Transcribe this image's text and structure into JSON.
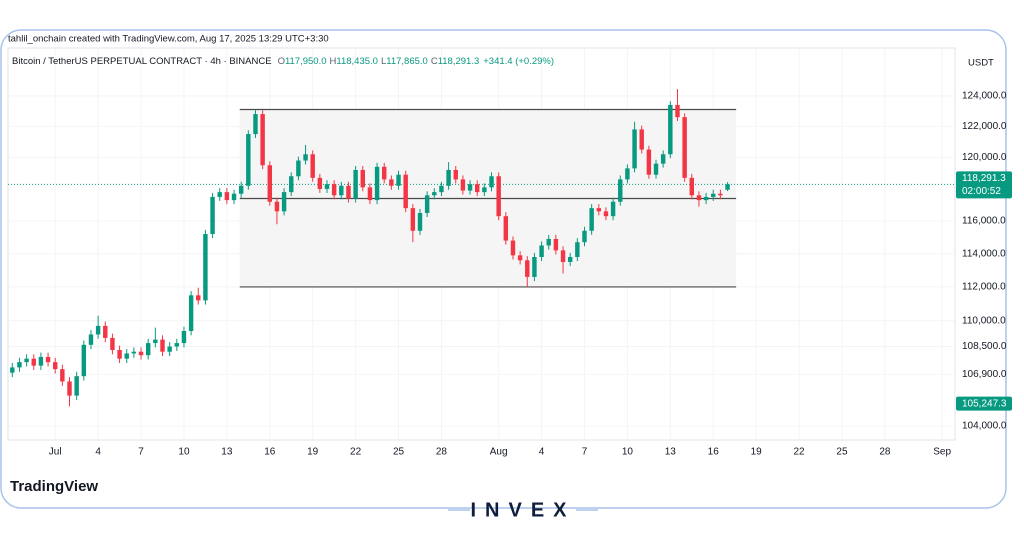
{
  "attribution": "tahlil_onchain created with TradingView.com, Aug 17, 2025 13:29 UTC+3:30",
  "watermark": "TradingView",
  "brand": "INVEX",
  "chart_data": {
    "type": "candlestick",
    "symbol": "Bitcoin / TetherUS PERPETUAL CONTRACT · 4h · BINANCE",
    "ohlc_labels": [
      {
        "key": "O",
        "value": "117,950.0"
      },
      {
        "key": "H",
        "value": "118,435.0"
      },
      {
        "key": "L",
        "value": "117,865.0"
      },
      {
        "key": "C",
        "value": "118,291.3"
      }
    ],
    "change": "+341.4 (+0.29%)",
    "currency": "USDT",
    "up_color": "#089981",
    "down_color": "#f23645",
    "log_scale": true,
    "grid": true,
    "xlim": [
      -3.3,
      62.9
    ],
    "xticks": [
      {
        "value": 0,
        "label": "Jul"
      },
      {
        "value": 3,
        "label": "4"
      },
      {
        "value": 6,
        "label": "7"
      },
      {
        "value": 9,
        "label": "10"
      },
      {
        "value": 12,
        "label": "13"
      },
      {
        "value": 15,
        "label": "16"
      },
      {
        "value": 18,
        "label": "19"
      },
      {
        "value": 21,
        "label": "22"
      },
      {
        "value": 24,
        "label": "25"
      },
      {
        "value": 27,
        "label": "28"
      },
      {
        "value": 31,
        "label": "Aug"
      },
      {
        "value": 34,
        "label": "4"
      },
      {
        "value": 37,
        "label": "7"
      },
      {
        "value": 40,
        "label": "10"
      },
      {
        "value": 43,
        "label": "13"
      },
      {
        "value": 46,
        "label": "16"
      },
      {
        "value": 49,
        "label": "19"
      },
      {
        "value": 52,
        "label": "22"
      },
      {
        "value": 55,
        "label": "25"
      },
      {
        "value": 58,
        "label": "28"
      },
      {
        "value": 62,
        "label": "Sep"
      }
    ],
    "ylim": [
      103230,
      127200
    ],
    "yticks": [
      {
        "value": 124000,
        "label": "124,000.0"
      },
      {
        "value": 122000,
        "label": "122,000.0"
      },
      {
        "value": 120000,
        "label": "120,000.0"
      },
      {
        "value": 116000,
        "label": "116,000.0"
      },
      {
        "value": 114000,
        "label": "114,000.0"
      },
      {
        "value": 112000,
        "label": "112,000.0"
      },
      {
        "value": 110000,
        "label": "110,000.0"
      },
      {
        "value": 108500,
        "label": "108,500.0"
      },
      {
        "value": 106900,
        "label": "106,900.0"
      },
      {
        "value": 104000,
        "label": "104,000.0"
      }
    ],
    "last_price": {
      "value": 118291.3,
      "label": "118,291.3",
      "countdown": "02:00:52",
      "color": "#089981"
    },
    "marker": {
      "value": 105247.3,
      "label": "105,247.3",
      "color": "#089981"
    },
    "range": {
      "x": [
        12.9,
        47.6
      ],
      "levels": [
        123100,
        117400,
        112000
      ],
      "fill": "#f5f5f5",
      "color": "#4a4a4a"
    },
    "x": [
      -3,
      -2.5,
      -2,
      -1.5,
      -1,
      -0.5,
      0,
      0.5,
      1,
      1.5,
      2,
      2.5,
      3,
      3.5,
      4,
      4.5,
      5,
      5.5,
      6,
      6.5,
      7,
      7.5,
      8,
      8.5,
      9,
      9.5,
      10,
      10.5,
      11,
      11.5,
      12,
      12.5,
      13,
      13.5,
      14,
      14.5,
      15,
      15.5,
      16,
      16.5,
      17,
      17.5,
      18,
      18.5,
      19,
      19.5,
      20,
      20.5,
      21,
      21.5,
      22,
      22.5,
      23,
      23.5,
      24,
      24.5,
      25,
      25.5,
      26,
      26.5,
      27,
      27.5,
      28,
      28.5,
      29,
      29.5,
      30,
      30.5,
      31,
      31.5,
      32,
      32.5,
      33,
      33.5,
      34,
      34.5,
      35,
      35.5,
      36,
      36.5,
      37,
      37.5,
      38,
      38.5,
      39,
      39.5,
      40,
      40.5,
      41,
      41.5,
      42,
      42.5,
      43,
      43.5,
      44,
      44.5,
      45,
      45.5,
      46,
      46.5,
      47
    ],
    "open": [
      107000,
      107300,
      107600,
      107800,
      107400,
      107900,
      107600,
      107200,
      106500,
      105700,
      106800,
      108600,
      109200,
      109700,
      109000,
      108300,
      107800,
      108100,
      108200,
      108000,
      108700,
      108900,
      108200,
      108500,
      108700,
      109400,
      111500,
      111200,
      115200,
      117500,
      117800,
      117300,
      117700,
      118200,
      121500,
      122800,
      119500,
      117200,
      116600,
      117800,
      118800,
      119800,
      120200,
      118700,
      118000,
      118300,
      117600,
      118200,
      117400,
      119200,
      118100,
      117300,
      119400,
      118600,
      118200,
      118900,
      116800,
      115400,
      116500,
      117600,
      117800,
      118200,
      119200,
      118600,
      117900,
      118300,
      117800,
      118100,
      118800,
      116300,
      114800,
      113900,
      113600,
      112600,
      113800,
      114500,
      114900,
      114200,
      113500,
      113800,
      114700,
      115400,
      116800,
      116600,
      116300,
      117200,
      118600,
      119300,
      121800,
      120500,
      118900,
      119600,
      120200,
      123400,
      122600,
      118700,
      117600,
      117300,
      117500,
      117700,
      117950
    ],
    "high": [
      107550,
      107850,
      108050,
      108050,
      108150,
      108150,
      107850,
      107450,
      106750,
      107050,
      108850,
      109450,
      110300,
      109950,
      109250,
      108550,
      108350,
      108450,
      108450,
      108950,
      109600,
      109150,
      108750,
      108950,
      109650,
      111750,
      111950,
      115450,
      117750,
      118050,
      118050,
      117950,
      118450,
      121750,
      123100,
      123050,
      119750,
      117450,
      118050,
      119050,
      120050,
      120800,
      120450,
      118950,
      118550,
      118550,
      118450,
      118450,
      119450,
      119450,
      118350,
      119650,
      119650,
      118850,
      119150,
      119150,
      117050,
      116750,
      117850,
      118050,
      118450,
      119700,
      119450,
      118850,
      118550,
      118550,
      118350,
      119050,
      119050,
      116550,
      115050,
      114150,
      113850,
      114050,
      114750,
      115150,
      115150,
      114450,
      114050,
      114950,
      115650,
      117050,
      117050,
      116850,
      117450,
      118850,
      119550,
      122300,
      122050,
      120750,
      119850,
      120450,
      123650,
      124450,
      122850,
      118950,
      117850,
      117750,
      117950,
      117950,
      118435
    ],
    "low": [
      106750,
      107050,
      107350,
      107150,
      107150,
      107350,
      106950,
      106250,
      105100,
      105450,
      106550,
      108350,
      108950,
      108750,
      108050,
      107550,
      107550,
      107850,
      107750,
      107750,
      108450,
      107950,
      107950,
      108250,
      108450,
      109150,
      110950,
      110950,
      114950,
      117250,
      117050,
      117050,
      117450,
      117950,
      121250,
      119250,
      116950,
      115800,
      116350,
      117550,
      118550,
      119550,
      118450,
      117750,
      117750,
      117350,
      117350,
      117150,
      117150,
      117850,
      117050,
      117050,
      118350,
      117950,
      117950,
      116550,
      114700,
      115150,
      116250,
      117350,
      117550,
      117950,
      118350,
      117650,
      117650,
      117550,
      117550,
      117850,
      116050,
      114550,
      113650,
      113350,
      112000,
      112350,
      113550,
      114250,
      113950,
      112800,
      113250,
      113550,
      114450,
      115150,
      116350,
      116050,
      116050,
      116950,
      118350,
      119050,
      120250,
      118650,
      118650,
      119350,
      119950,
      122350,
      118450,
      117350,
      116900,
      117050,
      117250,
      117350,
      117865
    ],
    "close": [
      107300,
      107600,
      107800,
      107400,
      107900,
      107600,
      107200,
      106500,
      105700,
      106800,
      108600,
      109200,
      109700,
      109000,
      108300,
      107800,
      108100,
      108200,
      108000,
      108700,
      108900,
      108200,
      108500,
      108700,
      109400,
      111500,
      111200,
      115200,
      117500,
      117800,
      117300,
      117700,
      118200,
      121500,
      122800,
      119500,
      117200,
      116600,
      117800,
      118800,
      119800,
      120200,
      118700,
      118000,
      118300,
      117600,
      118200,
      117400,
      119200,
      118100,
      117300,
      119400,
      118600,
      118200,
      118900,
      116800,
      115400,
      116500,
      117600,
      117800,
      118200,
      119200,
      118600,
      117900,
      118300,
      117800,
      118100,
      118800,
      116300,
      114800,
      113900,
      113600,
      112600,
      113800,
      114500,
      114900,
      114200,
      113500,
      113800,
      114700,
      115400,
      116800,
      116600,
      116300,
      117200,
      118600,
      119300,
      121800,
      120500,
      118900,
      119600,
      120200,
      123400,
      122600,
      118700,
      117600,
      117300,
      117500,
      117700,
      117600,
      118291.3
    ]
  }
}
